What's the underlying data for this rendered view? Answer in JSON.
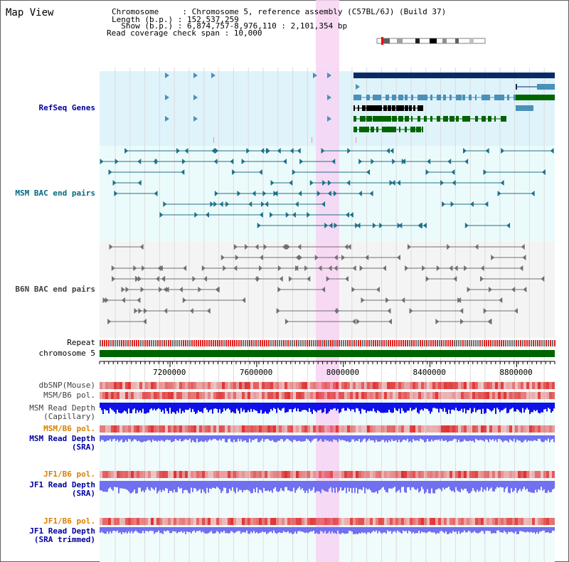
{
  "title": "Map View",
  "header": {
    "line1": "Chromosome     : Chromosome 5, reference assembly (C57BL/6J) (Build 37)",
    "line2": "Length (b.p.) : 152,537,259",
    "line3": "  Show (b.p.) : 6,874,757-8,976,110 : 2,101,354 bp",
    "line4": "Read coverage check span : 10,000"
  },
  "labels": {
    "refseq": "RefSeq Genes",
    "msm_bac": "MSM BAC end pairs",
    "b6n_bac": "B6N BAC end pairs",
    "repeat": "Repeat",
    "chromosome": "chromosome 5",
    "dbsnp": "dbSNP(Mouse)",
    "msm_b6_pol1": "MSM/B6 pol.",
    "msm_depth_cap": "MSM Read Depth\n(Capillary)",
    "msm_b6_pol2": "MSM/B6 pol.",
    "msm_depth_sra": "MSM Read Depth\n(SRA)",
    "jf1_b6_pol1": "JF1/B6 pol.",
    "jf1_depth_sra": "JF1 Read Depth\n(SRA)",
    "jf1_b6_pol2": "JF1/B6 pol.",
    "jf1_depth_trim": "JF1 Read Depth\n(SRA trimmed)"
  },
  "axis": {
    "ticks": [
      "7200000",
      "7600000",
      "8000000",
      "8400000",
      "8800000"
    ],
    "range": [
      6874757,
      8976110
    ]
  },
  "colors": {
    "refseq_bg": "#dff3fb",
    "bac_bg": "#ebfbfb",
    "highlight": "#f7d3f3",
    "chromosome": "#006400",
    "gene_dark": "#0a2a66",
    "gene_mid": "#4a90b8",
    "gene_green": "#006400",
    "msm_line": "#20708a",
    "b6n_line": "#707070",
    "depth_blue": "#1010e8",
    "depth_light": "#7070f0",
    "pol_red": "#e03030"
  }
}
